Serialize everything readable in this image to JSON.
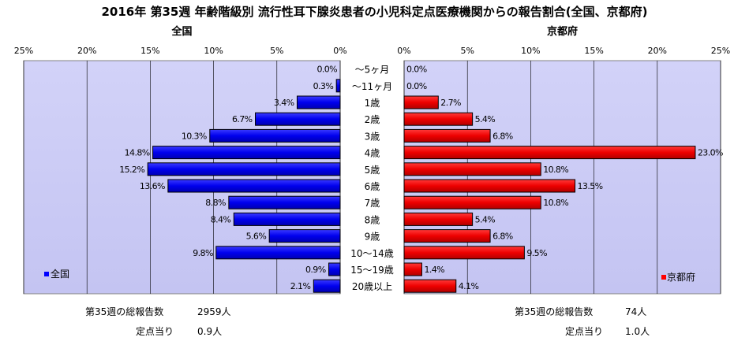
{
  "title": "2016年 第35週 年齢階級別 流行性耳下腺炎患者の小児科定点医療機関からの報告割合(全国、京都府)",
  "chart_data": {
    "type": "bar",
    "orientation": "horizontal",
    "categories": [
      "～5ヶ月",
      "～11ヶ月",
      "1歳",
      "2歳",
      "3歳",
      "4歳",
      "5歳",
      "6歳",
      "7歳",
      "8歳",
      "9歳",
      "10～14歳",
      "15～19歳",
      "20歳以上"
    ],
    "panels": [
      {
        "key": "national",
        "title": "全国",
        "series_name": "全国",
        "color": "#0000ff",
        "direction": "left",
        "xlim": [
          0,
          25
        ],
        "ticks": [
          25,
          20,
          15,
          10,
          5,
          0
        ],
        "tick_labels": [
          "25%",
          "20%",
          "15%",
          "10%",
          "5%",
          "0%"
        ],
        "values": [
          0.0,
          0.3,
          3.4,
          6.7,
          10.3,
          14.8,
          15.2,
          13.6,
          8.8,
          8.4,
          5.6,
          9.8,
          0.9,
          2.1
        ],
        "value_labels": [
          "0.0%",
          "0.3%",
          "3.4%",
          "6.7%",
          "10.3%",
          "14.8%",
          "15.2%",
          "13.6%",
          "8.8%",
          "8.4%",
          "5.6%",
          "9.8%",
          "0.9%",
          "2.1%"
        ],
        "legend": "全国",
        "legend_position": "bottom-left"
      },
      {
        "key": "kyoto",
        "title": "京都府",
        "series_name": "京都府",
        "color": "#ff0000",
        "direction": "right",
        "xlim": [
          0,
          25
        ],
        "ticks": [
          0,
          5,
          10,
          15,
          20,
          25
        ],
        "tick_labels": [
          "0%",
          "5%",
          "10%",
          "15%",
          "20%",
          "25%"
        ],
        "values": [
          0.0,
          0.0,
          2.7,
          5.4,
          6.8,
          23.0,
          10.8,
          13.5,
          10.8,
          5.4,
          6.8,
          9.5,
          1.4,
          4.1
        ],
        "value_labels": [
          "0.0%",
          "0.0%",
          "2.7%",
          "5.4%",
          "6.8%",
          "23.0%",
          "10.8%",
          "13.5%",
          "10.8%",
          "5.4%",
          "6.8%",
          "9.5%",
          "1.4%",
          "4.1%"
        ],
        "legend": "京都府",
        "legend_position": "bottom-right"
      }
    ],
    "grid": true
  },
  "footer": {
    "national": {
      "total_label": "第35週の総報告数",
      "total_value": "2959人",
      "per_label": "定点当り",
      "per_value": "0.9人"
    },
    "kyoto": {
      "total_label": "第35週の総報告数",
      "total_value": "74人",
      "per_label": "定点当り",
      "per_value": "1.0人"
    }
  }
}
